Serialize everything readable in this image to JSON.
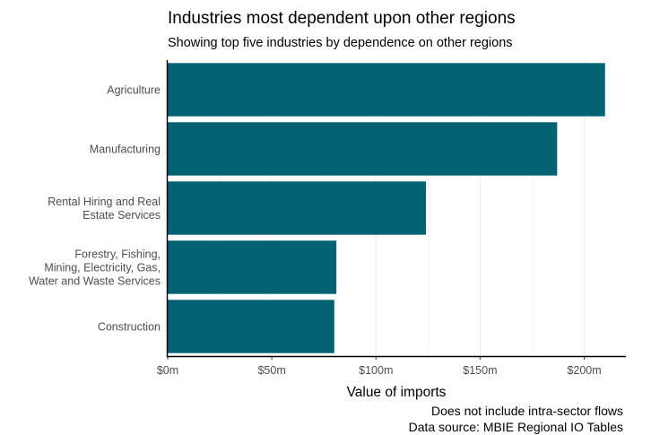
{
  "chart_data": {
    "type": "bar",
    "orientation": "horizontal",
    "title": "Industries most dependent upon other regions",
    "subtitle": "Showing top five industries by dependence on other regions",
    "xlabel": "Value of imports",
    "ylabel": "",
    "categories": [
      [
        "Agriculture"
      ],
      [
        "Manufacturing"
      ],
      [
        "Rental Hiring and Real",
        "Estate Services"
      ],
      [
        "Forestry, Fishing,",
        "Mining, Electricity, Gas,",
        "Water and Waste Services"
      ],
      [
        "Construction"
      ]
    ],
    "values": [
      210,
      187,
      124,
      81,
      80
    ],
    "value_unit": "millions",
    "xlim": [
      0,
      220
    ],
    "x_ticks": [
      0,
      50,
      100,
      150,
      200
    ],
    "x_tick_labels": [
      "$0m",
      "$50m",
      "$100m",
      "$150m",
      "$200m"
    ],
    "bar_color": "#006272",
    "grid": true,
    "caption": [
      "Does not include intra-sector flows",
      "Data source: MBIE Regional IO Tables"
    ]
  }
}
